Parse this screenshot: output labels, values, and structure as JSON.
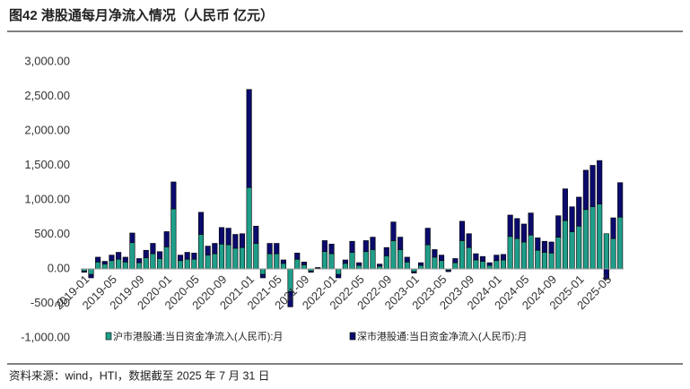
{
  "chart_data": {
    "type": "stacked_bar",
    "title": "图42 港股通每月净流入情况（人民币 亿元）",
    "source": "资料来源：wind，HTI，数据截至 2025 年 7 月 31 日",
    "categories": [
      "2019-01",
      null,
      null,
      null,
      "2019-05",
      null,
      null,
      null,
      "2019-09",
      null,
      null,
      null,
      "2020-01",
      null,
      null,
      null,
      "2020-05",
      null,
      null,
      null,
      "2020-09",
      null,
      null,
      null,
      "2021-01",
      null,
      null,
      null,
      "2021-05",
      null,
      null,
      null,
      "2021-09",
      null,
      null,
      null,
      "2022-01",
      null,
      null,
      null,
      "2022-05",
      null,
      null,
      null,
      "2022-09",
      null,
      null,
      null,
      "2023-01",
      null,
      null,
      null,
      "2023-05",
      null,
      null,
      null,
      "2023-09",
      null,
      null,
      null,
      "2024-01",
      null,
      null,
      null,
      "2024-05",
      null,
      null,
      null,
      "2024-09",
      null,
      null,
      null,
      "2025-01",
      null,
      null,
      null,
      "2025-05",
      null,
      null
    ],
    "series": [
      {
        "name": "沪市港股通:当日资金净流入(人民币):月",
        "color": "#1f9e89",
        "values": [
          -30,
          -80,
          100,
          70,
          120,
          140,
          100,
          380,
          90,
          160,
          220,
          150,
          320,
          870,
          120,
          140,
          140,
          500,
          200,
          220,
          360,
          350,
          300,
          310,
          1180,
          370,
          -80,
          220,
          220,
          80,
          -330,
          140,
          60,
          -30,
          10,
          250,
          220,
          -80,
          80,
          240,
          50,
          250,
          280,
          40,
          190,
          410,
          280,
          100,
          -40,
          50,
          350,
          170,
          120,
          -20,
          90,
          410,
          310,
          130,
          110,
          50,
          120,
          130,
          470,
          440,
          390,
          490,
          270,
          240,
          230,
          460,
          700,
          540,
          620,
          860,
          900,
          940,
          510,
          440,
          750
        ]
      },
      {
        "name": "深市港股通:当日资金净流入(人民币):月",
        "color": "#0b0b6e",
        "values": [
          -20,
          -50,
          70,
          40,
          80,
          100,
          70,
          140,
          60,
          110,
          150,
          100,
          220,
          390,
          80,
          100,
          90,
          320,
          130,
          150,
          240,
          240,
          200,
          200,
          1420,
          250,
          -50,
          150,
          150,
          50,
          -220,
          90,
          40,
          -20,
          10,
          160,
          140,
          -50,
          50,
          160,
          40,
          160,
          180,
          30,
          120,
          270,
          180,
          70,
          -20,
          40,
          240,
          110,
          80,
          -20,
          60,
          280,
          200,
          90,
          70,
          40,
          80,
          80,
          310,
          290,
          260,
          320,
          180,
          160,
          160,
          310,
          460,
          360,
          420,
          570,
          600,
          630,
          -150,
          300,
          500
        ]
      }
    ],
    "ylim": [
      -1000,
      3000
    ],
    "yticks": [
      {
        "value": -1000,
        "label": "-1,000.00"
      },
      {
        "value": -500,
        "label": "-500.00"
      },
      {
        "value": 0,
        "label": "0.00"
      },
      {
        "value": 500,
        "label": "500.00"
      },
      {
        "value": 1000,
        "label": "1,000.00"
      },
      {
        "value": 1500,
        "label": "1,500.00"
      },
      {
        "value": 2000,
        "label": "2,000.00"
      },
      {
        "value": 2500,
        "label": "2,500.00"
      },
      {
        "value": 3000,
        "label": "3,000.00"
      }
    ],
    "grid": false
  }
}
